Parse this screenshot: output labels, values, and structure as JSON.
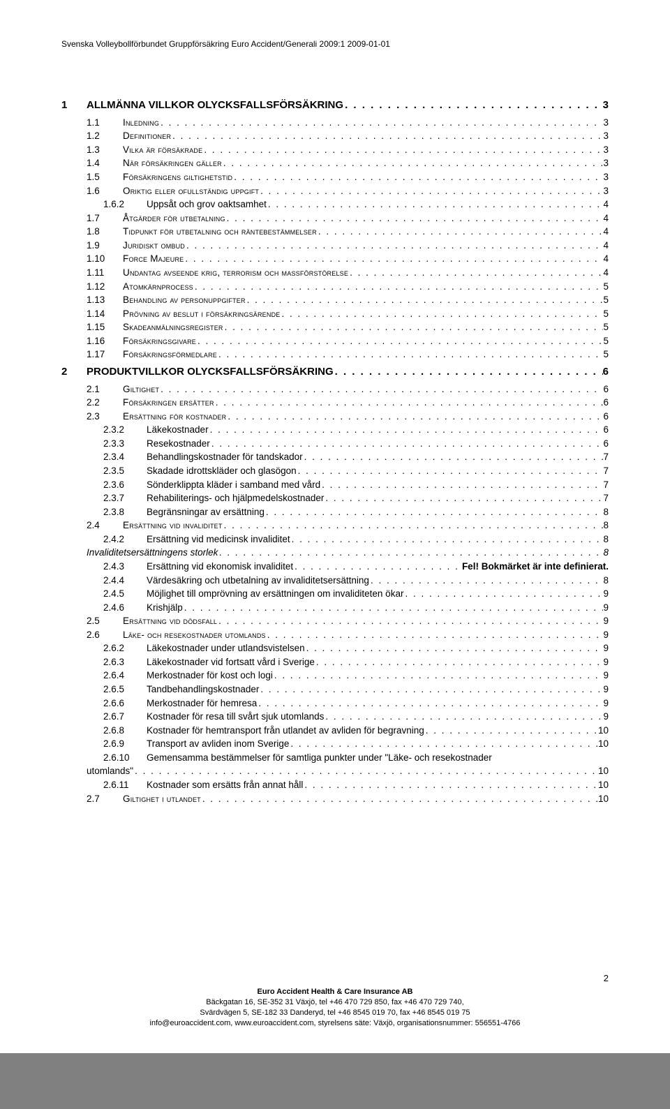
{
  "header": "Svenska Volleybollförbundet Gruppförsäkring Euro Accident/Generali 2009:1 2009-01-01",
  "page_number": "2",
  "footer": {
    "company": "Euro Accident Health & Care Insurance AB",
    "line1": "Bäckgatan 16, SE-352 31 Växjö, tel +46 470 729 850, fax +46 470 729 740,",
    "line2": "Svärdvägen 5, SE-182 33 Danderyd, tel +46 8545 019 70, fax +46 8545 019 75",
    "line3": "info@euroaccident.com, www.euroaccident.com, styrelsens säte: Växjö, organisationsnummer: 556551-4766"
  },
  "toc": [
    {
      "lvl": 0,
      "num": "1",
      "title": "ALLMÄNNA VILLKOR OLYCKSFALLSFÖRSÄKRING",
      "page": "3",
      "sv": false
    },
    {
      "lvl": 1,
      "num": "1.1",
      "title": "Inledning",
      "page": "3",
      "sv": true
    },
    {
      "lvl": 1,
      "num": "1.2",
      "title": "Definitioner",
      "page": "3",
      "sv": true
    },
    {
      "lvl": 1,
      "num": "1.3",
      "title": "Vilka är försäkrade",
      "page": "3",
      "sv": true
    },
    {
      "lvl": 1,
      "num": "1.4",
      "title": "När försäkringen gäller",
      "page": "3",
      "sv": true
    },
    {
      "lvl": 1,
      "num": "1.5",
      "title": "Försäkringens giltighetstid",
      "page": "3",
      "sv": true
    },
    {
      "lvl": 1,
      "num": "1.6",
      "title": "Oriktig eller ofullständig uppgift",
      "page": "3",
      "sv": true
    },
    {
      "lvl": 2,
      "num": "1.6.2",
      "title": "Uppsåt och grov oaktsamhet",
      "page": "4",
      "sv": false
    },
    {
      "lvl": 1,
      "num": "1.7",
      "title": "Åtgärder för utbetalning",
      "page": "4",
      "sv": true
    },
    {
      "lvl": 1,
      "num": "1.8",
      "title": "Tidpunkt för utbetalning och räntebestämmelser",
      "page": "4",
      "sv": true
    },
    {
      "lvl": 1,
      "num": "1.9",
      "title": "Juridiskt ombud",
      "page": "4",
      "sv": true
    },
    {
      "lvl": 1,
      "num": "1.10",
      "title": "Force Majeure",
      "page": "4",
      "sv": true
    },
    {
      "lvl": 1,
      "num": "1.11",
      "title": "Undantag avseende krig, terrorism och massförstörelse",
      "page": "4",
      "sv": true
    },
    {
      "lvl": 1,
      "num": "1.12",
      "title": "Atomkärnprocess",
      "page": "5",
      "sv": true
    },
    {
      "lvl": 1,
      "num": "1.13",
      "title": "Behandling av personuppgifter",
      "page": "5",
      "sv": true
    },
    {
      "lvl": 1,
      "num": "1.14",
      "title": "Prövning av beslut i försäkringsärende",
      "page": "5",
      "sv": true
    },
    {
      "lvl": 1,
      "num": "1.15",
      "title": "Skadeanmälningsregister",
      "page": "5",
      "sv": true
    },
    {
      "lvl": 1,
      "num": "1.16",
      "title": "Försäkringsgivare",
      "page": "5",
      "sv": true
    },
    {
      "lvl": 1,
      "num": "1.17",
      "title": "Försäkringsförmedlare",
      "page": "5",
      "sv": true
    },
    {
      "lvl": 0,
      "num": "2",
      "title": "PRODUKTVILLKOR OLYCKSFALLSFÖRSÄKRING",
      "page": "6",
      "sv": false
    },
    {
      "lvl": 1,
      "num": "2.1",
      "title": "Giltighet",
      "page": "6",
      "sv": true
    },
    {
      "lvl": 1,
      "num": "2.2",
      "title": "Försäkringen ersätter",
      "page": "6",
      "sv": true
    },
    {
      "lvl": 1,
      "num": "2.3",
      "title": "Ersättning för kostnader",
      "page": "6",
      "sv": true
    },
    {
      "lvl": 2,
      "num": "2.3.2",
      "title": "Läkekostnader",
      "page": "6",
      "sv": false
    },
    {
      "lvl": 2,
      "num": "2.3.3",
      "title": "Resekostnader",
      "page": "6",
      "sv": false
    },
    {
      "lvl": 2,
      "num": "2.3.4",
      "title": "Behandlingskostnader för tandskador",
      "page": "7",
      "sv": false
    },
    {
      "lvl": 2,
      "num": "2.3.5",
      "title": "Skadade idrottskläder och glasögon",
      "page": "7",
      "sv": false
    },
    {
      "lvl": 2,
      "num": "2.3.6",
      "title": "Sönderklippta kläder i samband med vård",
      "page": "7",
      "sv": false
    },
    {
      "lvl": 2,
      "num": "2.3.7",
      "title": "Rehabiliterings- och hjälpmedelskostnader",
      "page": "7",
      "sv": false
    },
    {
      "lvl": 2,
      "num": "2.3.8",
      "title": "Begränsningar av ersättning",
      "page": "8",
      "sv": false
    },
    {
      "lvl": 1,
      "num": "2.4",
      "title": "Ersättning vid invaliditet",
      "page": "8",
      "sv": true
    },
    {
      "lvl": 2,
      "num": "2.4.2",
      "title": "Ersättning vid medicinsk invaliditet",
      "page": "8",
      "sv": false
    },
    {
      "lvl": "2i",
      "num": "",
      "title": "Invaliditetsersättningens storlek",
      "page": "8",
      "sv": false
    },
    {
      "lvl": 2,
      "num": "2.4.3",
      "title": "Ersättning vid ekonomisk invaliditet",
      "page": "Fel! Bokmärket är inte definierat.",
      "sv": false,
      "nodots": false,
      "boldpg": true
    },
    {
      "lvl": 2,
      "num": "2.4.4",
      "title": "Värdesäkring och utbetalning av invaliditetsersättning",
      "page": "8",
      "sv": false
    },
    {
      "lvl": 2,
      "num": "2.4.5",
      "title": "Möjlighet till omprövning av ersättningen om invaliditeten ökar",
      "page": "9",
      "sv": false
    },
    {
      "lvl": 2,
      "num": "2.4.6",
      "title": "Krishjälp",
      "page": "9",
      "sv": false
    },
    {
      "lvl": 1,
      "num": "2.5",
      "title": "Ersättning vid dödsfall",
      "page": "9",
      "sv": true
    },
    {
      "lvl": 1,
      "num": "2.6",
      "title": "Läke- och resekostnader utomlands",
      "page": "9",
      "sv": true
    },
    {
      "lvl": 2,
      "num": "2.6.2",
      "title": "Läkekostnader under utlandsvistelsen",
      "page": "9",
      "sv": false
    },
    {
      "lvl": 2,
      "num": "2.6.3",
      "title": "Läkekostnader vid fortsatt vård i Sverige",
      "page": "9",
      "sv": false
    },
    {
      "lvl": 2,
      "num": "2.6.4",
      "title": "Merkostnader för kost och logi",
      "page": "9",
      "sv": false
    },
    {
      "lvl": 2,
      "num": "2.6.5",
      "title": "Tandbehandlingskostnader",
      "page": "9",
      "sv": false
    },
    {
      "lvl": 2,
      "num": "2.6.6",
      "title": "Merkostnader för hemresa",
      "page": "9",
      "sv": false
    },
    {
      "lvl": 2,
      "num": "2.6.7",
      "title": "Kostnader för resa till svårt sjuk utomlands",
      "page": "9",
      "sv": false
    },
    {
      "lvl": 2,
      "num": "2.6.8",
      "title": "Kostnader för hemtransport från utlandet av avliden för begravning",
      "page": "10",
      "sv": false
    },
    {
      "lvl": 2,
      "num": "2.6.9",
      "title": "Transport av avliden inom Sverige",
      "page": "10",
      "sv": false
    },
    {
      "lvl": 2,
      "num": "2.6.10",
      "title": "Gemensamma bestämmelser för samtliga punkter under \"Läke- och resekostnader utomlands\"",
      "page": "10",
      "sv": false,
      "wrap": true
    },
    {
      "lvl": 2,
      "num": "2.6.11",
      "title": "Kostnader som ersätts från annat håll",
      "page": "10",
      "sv": false
    },
    {
      "lvl": 1,
      "num": "2.7",
      "title": "Giltighet i utlandet",
      "page": "10",
      "sv": true
    }
  ]
}
